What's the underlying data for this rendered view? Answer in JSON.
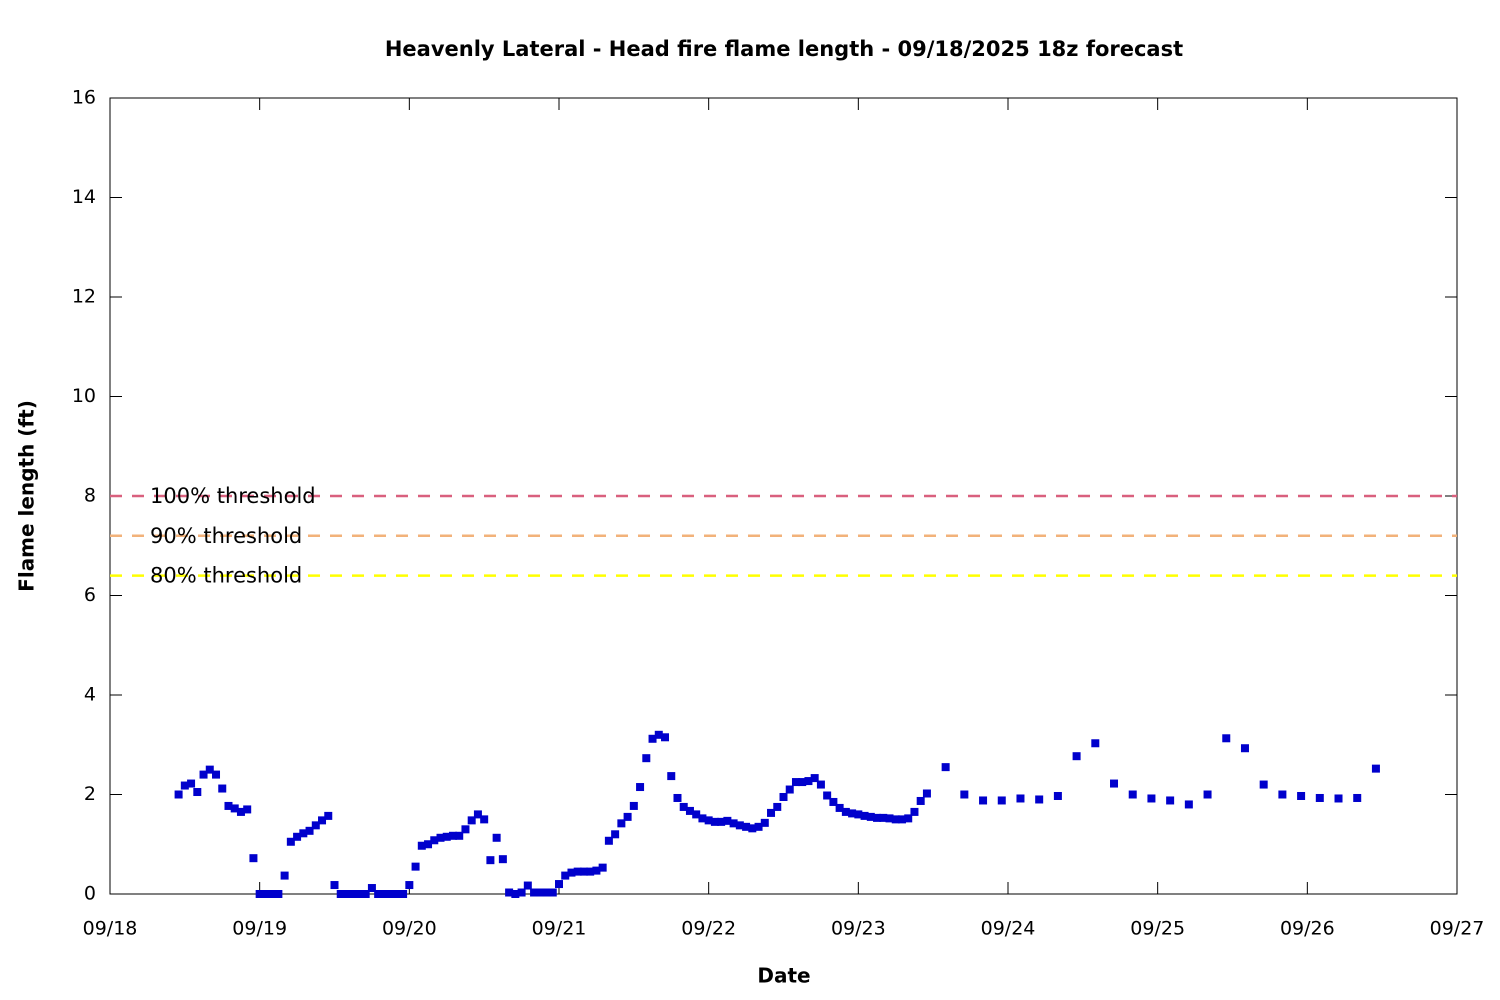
{
  "chart_data": {
    "type": "scatter",
    "title": "Heavenly Lateral - Head fire flame length - 09/18/2025 18z forecast",
    "x_label": "Date",
    "y_label": "Flame length (ft)",
    "xlim": [
      0,
      216
    ],
    "xticks": [
      {
        "value": 0,
        "label": "09/18"
      },
      {
        "value": 24,
        "label": "09/19"
      },
      {
        "value": 48,
        "label": "09/20"
      },
      {
        "value": 72,
        "label": "09/21"
      },
      {
        "value": 96,
        "label": "09/22"
      },
      {
        "value": 120,
        "label": "09/23"
      },
      {
        "value": 144,
        "label": "09/24"
      },
      {
        "value": 168,
        "label": "09/25"
      },
      {
        "value": 192,
        "label": "09/26"
      },
      {
        "value": 216,
        "label": "09/27"
      }
    ],
    "ylim": [
      0,
      16
    ],
    "yticks": [
      0,
      2,
      4,
      6,
      8,
      10,
      12,
      14,
      16
    ],
    "reference_lines": [
      {
        "name": "100% threshold",
        "value": 8,
        "color": "#d9607e"
      },
      {
        "name": "90% threshold",
        "value": 7.2,
        "color": "#f2b27a"
      },
      {
        "name": "80% threshold",
        "value": 6.4,
        "color": "#ffff00"
      }
    ],
    "series": [
      {
        "color": "#0000cc",
        "x": [
          11,
          12,
          13,
          14,
          15,
          16,
          17,
          18,
          19,
          20,
          21,
          22,
          23,
          24,
          25,
          26,
          27,
          28,
          29,
          30,
          31,
          32,
          33,
          34,
          35,
          36,
          37,
          38,
          39,
          40,
          41,
          42,
          43,
          44,
          45,
          46,
          47,
          48,
          49,
          50,
          51,
          52,
          53,
          54,
          55,
          56,
          57,
          58,
          59,
          60,
          61,
          62,
          63,
          64,
          65,
          66,
          67,
          68,
          69,
          70,
          71,
          72,
          73,
          74,
          75,
          76,
          77,
          78,
          79,
          80,
          81,
          82,
          83,
          84,
          85,
          86,
          87,
          88,
          89,
          90,
          91,
          92,
          93,
          94,
          95,
          96,
          97,
          98,
          99,
          100,
          101,
          102,
          103,
          104,
          105,
          106,
          107,
          108,
          109,
          110,
          111,
          112,
          113,
          114,
          115,
          116,
          117,
          118,
          119,
          120,
          121,
          122,
          123,
          124,
          125,
          126,
          127,
          128,
          129,
          130,
          131,
          134,
          137,
          140,
          143,
          146,
          149,
          152,
          155,
          158,
          161,
          164,
          167,
          170,
          173,
          176,
          179,
          182,
          185,
          188,
          191,
          194,
          197,
          200,
          203
        ],
        "values": [
          2.0,
          2.18,
          2.22,
          2.05,
          2.4,
          2.5,
          2.4,
          2.12,
          1.77,
          1.72,
          1.65,
          1.7,
          0.72,
          0,
          0,
          0,
          0,
          0.37,
          1.05,
          1.15,
          1.22,
          1.27,
          1.38,
          1.48,
          1.57,
          0.18,
          0,
          0,
          0,
          0,
          0,
          0.12,
          0,
          0,
          0,
          0,
          0,
          0.18,
          0.55,
          0.97,
          1.0,
          1.08,
          1.13,
          1.15,
          1.17,
          1.17,
          1.3,
          1.48,
          1.6,
          1.5,
          0.68,
          1.13,
          0.7,
          0.03,
          0,
          0.03,
          0.17,
          0.03,
          0.03,
          0.03,
          0.03,
          0.2,
          0.37,
          0.43,
          0.45,
          0.45,
          0.45,
          0.47,
          0.53,
          1.07,
          1.2,
          1.42,
          1.55,
          1.77,
          2.15,
          2.73,
          3.12,
          3.2,
          3.15,
          2.37,
          1.93,
          1.75,
          1.67,
          1.6,
          1.52,
          1.48,
          1.45,
          1.45,
          1.47,
          1.42,
          1.38,
          1.35,
          1.32,
          1.35,
          1.43,
          1.63,
          1.75,
          1.95,
          2.1,
          2.25,
          2.25,
          2.27,
          2.33,
          2.2,
          1.98,
          1.85,
          1.73,
          1.65,
          1.62,
          1.6,
          1.57,
          1.55,
          1.53,
          1.53,
          1.52,
          1.5,
          1.5,
          1.52,
          1.65,
          1.87,
          2.02,
          2.55,
          2.0,
          1.88,
          1.88,
          1.92,
          1.9,
          1.97,
          2.77,
          3.03,
          2.22,
          2.0,
          1.92,
          1.88,
          1.8,
          2.0,
          3.13,
          2.93,
          2.2,
          2.0,
          1.97,
          1.93,
          1.92,
          1.93,
          2.52
        ]
      }
    ]
  }
}
